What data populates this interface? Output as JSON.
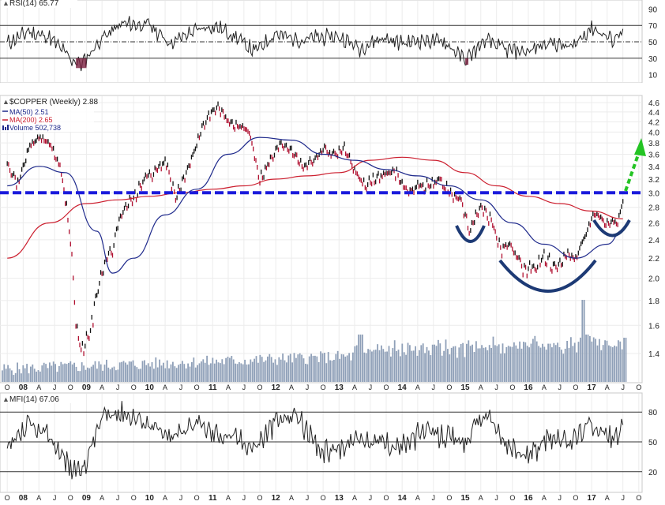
{
  "panels": {
    "rsi": {
      "label": "RSI(14) 65.77",
      "ticks": [
        90,
        70,
        50,
        30,
        10
      ],
      "ylim": [
        0,
        100
      ],
      "overbought": 70,
      "oversold": 30,
      "mid": 50
    },
    "price": {
      "title": "$COPPER (Weekly) 2.88",
      "legend": [
        {
          "label": "MA(50) 2.51",
          "color": "#1f2a8c"
        },
        {
          "label": "MA(200) 2.65",
          "color": "#cc1f2f"
        },
        {
          "label": "Volume 502,738",
          "color": "#1f2a8c"
        }
      ],
      "ticks": [
        "4.6",
        "4.4",
        "4.2",
        "4.0",
        "3.8",
        "3.6",
        "3.4",
        "3.2",
        "3.0",
        "2.8",
        "2.6",
        "2.4",
        "2.2",
        "2.0",
        "1.8",
        "1.6",
        "1.4"
      ]
    },
    "mfi": {
      "label": "MFI(14) 67.06",
      "ticks": [
        80,
        50,
        20
      ],
      "ylim": [
        0,
        100
      ]
    }
  },
  "xaxis": {
    "labels": [
      "O",
      "08",
      "A",
      "J",
      "O",
      "09",
      "A",
      "J",
      "O",
      "10",
      "A",
      "J",
      "O",
      "11",
      "A",
      "J",
      "O",
      "12",
      "A",
      "J",
      "O",
      "13",
      "A",
      "J",
      "O",
      "14",
      "A",
      "J",
      "O",
      "15",
      "A",
      "J",
      "O",
      "16",
      "A",
      "J",
      "O",
      "17",
      "A",
      "J",
      "O"
    ],
    "bold": [
      "08",
      "09",
      "10",
      "11",
      "12",
      "13",
      "14",
      "15",
      "16",
      "17"
    ]
  },
  "chart_data": {
    "type": "line",
    "title": "$COPPER (Weekly) 2.88",
    "x_range": [
      "2007-10",
      "2017-10"
    ],
    "ylim": [
      1.3,
      4.7
    ],
    "last_close": 2.88,
    "price_series": {
      "name": "$COPPER",
      "x": [
        "2007-10",
        "2007-12",
        "2008-02",
        "2008-04",
        "2008-06",
        "2008-08",
        "2008-10",
        "2008-11",
        "2008-12",
        "2009-02",
        "2009-04",
        "2009-06",
        "2009-08",
        "2009-10",
        "2009-12",
        "2010-02",
        "2010-04",
        "2010-06",
        "2010-08",
        "2010-10",
        "2010-12",
        "2011-02",
        "2011-04",
        "2011-06",
        "2011-08",
        "2011-10",
        "2011-12",
        "2012-02",
        "2012-04",
        "2012-06",
        "2012-08",
        "2012-10",
        "2012-12",
        "2013-02",
        "2013-04",
        "2013-06",
        "2013-08",
        "2013-10",
        "2013-12",
        "2014-02",
        "2014-04",
        "2014-06",
        "2014-08",
        "2014-10",
        "2014-12",
        "2015-02",
        "2015-04",
        "2015-06",
        "2015-08",
        "2015-10",
        "2015-12",
        "2016-02",
        "2016-04",
        "2016-06",
        "2016-08",
        "2016-10",
        "2016-12",
        "2017-02",
        "2017-04",
        "2017-06",
        "2017-07"
      ],
      "values": [
        3.5,
        3.1,
        3.7,
        3.9,
        3.8,
        3.4,
        2.4,
        1.6,
        1.4,
        1.6,
        2.1,
        2.3,
        2.8,
        2.9,
        3.2,
        3.3,
        3.5,
        2.9,
        3.3,
        3.8,
        4.3,
        4.5,
        4.2,
        4.1,
        4.0,
        3.2,
        3.5,
        3.8,
        3.7,
        3.4,
        3.5,
        3.7,
        3.6,
        3.7,
        3.3,
        3.1,
        3.2,
        3.3,
        3.3,
        3.0,
        3.1,
        3.1,
        3.2,
        3.0,
        2.9,
        2.5,
        2.8,
        2.6,
        2.3,
        2.3,
        2.1,
        2.1,
        2.2,
        2.1,
        2.2,
        2.2,
        2.5,
        2.7,
        2.6,
        2.6,
        2.88
      ]
    },
    "ma50": {
      "name": "MA(50) 2.51",
      "x": [
        "2007-10",
        "2008-04",
        "2008-09",
        "2009-03",
        "2009-06",
        "2009-10",
        "2010-04",
        "2010-10",
        "2011-04",
        "2011-10",
        "2012-04",
        "2012-10",
        "2013-04",
        "2013-10",
        "2014-04",
        "2014-10",
        "2015-04",
        "2015-10",
        "2016-04",
        "2016-10",
        "2017-04",
        "2017-07"
      ],
      "values": [
        3.1,
        3.4,
        3.3,
        2.5,
        2.05,
        2.2,
        2.7,
        3.05,
        3.6,
        3.9,
        3.85,
        3.6,
        3.5,
        3.35,
        3.25,
        3.1,
        2.9,
        2.6,
        2.35,
        2.2,
        2.35,
        2.51
      ]
    },
    "ma200": {
      "name": "MA(200) 2.65",
      "x": [
        "2007-10",
        "2008-06",
        "2009-01",
        "2009-07",
        "2010-01",
        "2010-07",
        "2011-01",
        "2011-07",
        "2012-01",
        "2012-07",
        "2013-01",
        "2013-07",
        "2014-01",
        "2014-07",
        "2015-01",
        "2015-07",
        "2016-01",
        "2016-07",
        "2017-01",
        "2017-07"
      ],
      "values": [
        2.2,
        2.6,
        2.85,
        2.9,
        2.95,
        3.0,
        3.05,
        3.1,
        3.2,
        3.25,
        3.3,
        3.5,
        3.55,
        3.5,
        3.3,
        3.1,
        2.95,
        2.85,
        2.75,
        2.65
      ]
    },
    "resistance_line": 3.0,
    "volume": {
      "name": "Volume 502,738",
      "last": 502738
    },
    "rsi": {
      "name": "RSI(14)",
      "last": 65.77,
      "x": [
        "2007-10",
        "2008-02",
        "2008-06",
        "2008-10",
        "2008-12",
        "2009-04",
        "2009-08",
        "2010-01",
        "2010-05",
        "2010-09",
        "2011-01",
        "2011-05",
        "2011-09",
        "2012-01",
        "2012-05",
        "2012-09",
        "2013-01",
        "2013-05",
        "2013-09",
        "2014-01",
        "2014-05",
        "2014-09",
        "2015-01",
        "2015-05",
        "2015-09",
        "2016-01",
        "2016-05",
        "2016-09",
        "2017-01",
        "2017-05",
        "2017-07"
      ],
      "values": [
        48,
        62,
        55,
        30,
        22,
        55,
        72,
        70,
        48,
        62,
        70,
        58,
        38,
        60,
        52,
        55,
        57,
        42,
        55,
        48,
        52,
        50,
        28,
        52,
        40,
        38,
        50,
        42,
        68,
        52,
        65.77
      ]
    },
    "mfi": {
      "name": "MFI(14)",
      "last": 67.06,
      "x": [
        "2007-10",
        "2008-02",
        "2008-06",
        "2008-10",
        "2008-12",
        "2009-04",
        "2009-08",
        "2010-01",
        "2010-05",
        "2010-09",
        "2011-01",
        "2011-05",
        "2011-09",
        "2012-01",
        "2012-05",
        "2012-09",
        "2013-01",
        "2013-05",
        "2013-09",
        "2014-01",
        "2014-05",
        "2014-09",
        "2015-01",
        "2015-05",
        "2015-09",
        "2016-01",
        "2016-05",
        "2016-09",
        "2017-01",
        "2017-05",
        "2017-07"
      ],
      "values": [
        40,
        65,
        55,
        25,
        18,
        75,
        80,
        68,
        52,
        70,
        60,
        55,
        45,
        70,
        78,
        40,
        45,
        55,
        50,
        45,
        60,
        55,
        50,
        80,
        45,
        35,
        55,
        50,
        70,
        52,
        67.06
      ]
    }
  }
}
